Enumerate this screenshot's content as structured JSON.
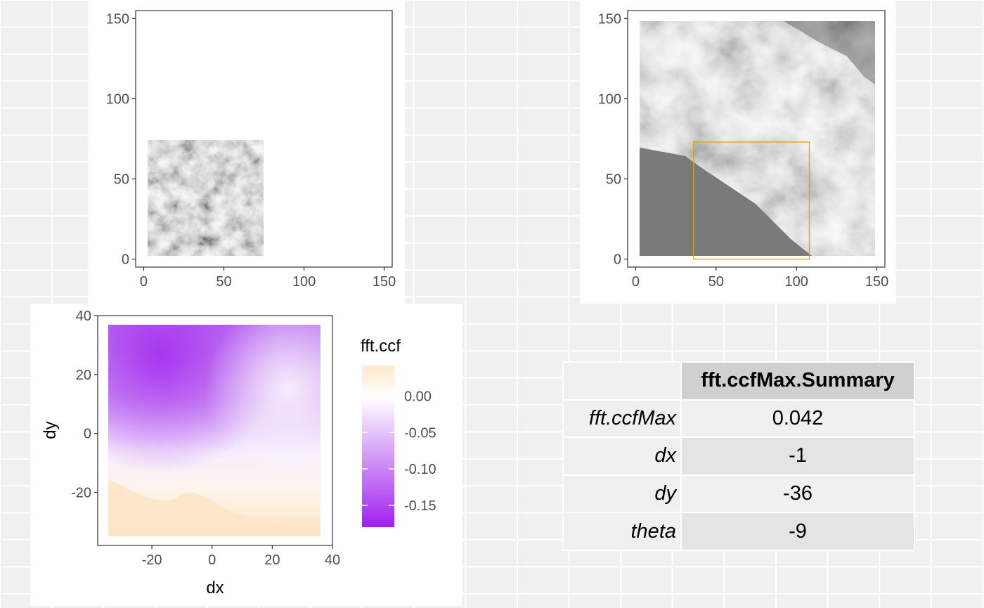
{
  "plot_reference": {
    "x_ticks": [
      "0",
      "50",
      "100",
      "150"
    ],
    "y_ticks": [
      "0",
      "50",
      "100",
      "150"
    ]
  },
  "plot_target": {
    "x_ticks": [
      "0",
      "50",
      "100",
      "150"
    ],
    "y_ticks": [
      "0",
      "50",
      "100",
      "150"
    ],
    "highlight_color": "#e69f00"
  },
  "ccf_plot": {
    "x_ticks": [
      "-20",
      "0",
      "20",
      "40"
    ],
    "y_ticks": [
      "-20",
      "0",
      "20",
      "40"
    ],
    "xlabel": "dx",
    "ylabel": "dy",
    "legend_title": "fft.ccf",
    "legend_labels": [
      "0.00",
      "-0.05",
      "-0.10",
      "-0.15"
    ],
    "colors": {
      "high": "#fde9cc",
      "mid": "#ffffff",
      "low": "#a020f0"
    }
  },
  "summary": {
    "header": "fft.ccfMax.Summary",
    "rows": [
      {
        "label": "fft.ccfMax",
        "value": "0.042"
      },
      {
        "label": "dx",
        "value": "-1"
      },
      {
        "label": "dy",
        "value": "-36"
      },
      {
        "label": "theta",
        "value": "-9"
      }
    ]
  },
  "chart_data": [
    {
      "type": "heatmap",
      "title": "",
      "xlabel": "",
      "ylabel": "",
      "xlim": [
        -5,
        155
      ],
      "ylim": [
        -5,
        155
      ],
      "grid": false,
      "notes": "Grayscale surface of reference cell occupying x 0–72, y 0–72"
    },
    {
      "type": "heatmap",
      "title": "",
      "xlabel": "",
      "ylabel": "",
      "xlim": [
        -5,
        155
      ],
      "ylim": [
        -5,
        155
      ],
      "grid": false,
      "highlight_box": {
        "x": [
          36,
          108
        ],
        "y": [
          0,
          73
        ]
      },
      "notes": "Grayscale surface of target region x 0–147, y 0–147 with orange rectangle marking matched region"
    },
    {
      "type": "heatmap",
      "title": "",
      "xlabel": "dx",
      "ylabel": "dy",
      "xlim": [
        -38,
        40
      ],
      "ylim": [
        -38,
        40
      ],
      "grid": false,
      "legend": {
        "title": "fft.ccf",
        "position": "right",
        "breaks": [
          0.0,
          -0.05,
          -0.1,
          -0.15
        ],
        "range": [
          -0.18,
          0.042
        ]
      },
      "data_extent": {
        "x": [
          -36,
          36
        ],
        "y": [
          -36,
          36
        ]
      },
      "series": [
        {
          "name": "fft.ccf",
          "min": -0.18,
          "max": 0.042
        }
      ]
    },
    {
      "type": "table",
      "columns": [
        "fft.ccfMax.Summary"
      ],
      "rows": [
        [
          "fft.ccfMax",
          "0.042"
        ],
        [
          "dx",
          "-1"
        ],
        [
          "dy",
          "-36"
        ],
        [
          "theta",
          "-9"
        ]
      ]
    }
  ]
}
